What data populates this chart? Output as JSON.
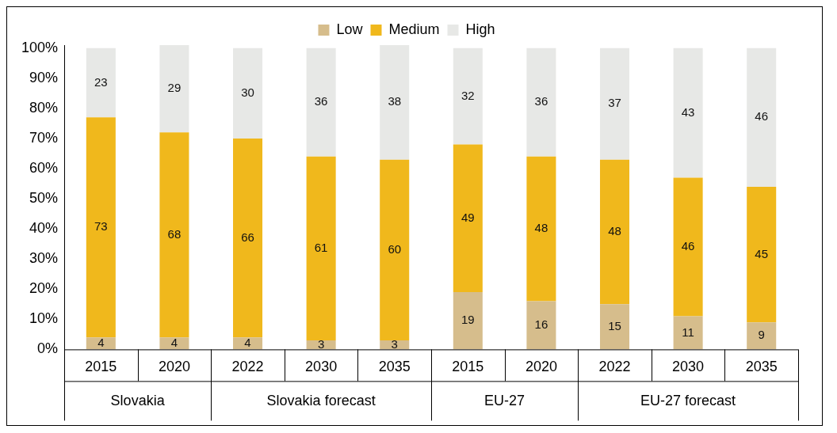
{
  "chart_data": {
    "type": "bar",
    "stacked": true,
    "categories": [
      "2015",
      "2020",
      "2022",
      "2030",
      "2035",
      "2015",
      "2020",
      "2022",
      "2030",
      "2035"
    ],
    "annotations": [
      "Slovakia",
      "Slovakia forecast",
      "EU-27",
      "EU-27 forecast"
    ],
    "series": [
      {
        "name": "Low",
        "color": "#d6bd8c",
        "values": [
          4,
          4,
          4,
          3,
          3,
          19,
          16,
          15,
          11,
          9
        ]
      },
      {
        "name": "Medium",
        "color": "#f0b81c",
        "values": [
          73,
          68,
          66,
          61,
          60,
          49,
          48,
          48,
          46,
          45
        ]
      },
      {
        "name": "High",
        "color": "#e7e8e6",
        "values": [
          23,
          29,
          30,
          36,
          38,
          32,
          36,
          37,
          43,
          46
        ]
      }
    ],
    "ylim": [
      0,
      101
    ],
    "yticks": [
      {
        "value": 0,
        "label": "0%"
      },
      {
        "value": 10,
        "label": "10%"
      },
      {
        "value": 20,
        "label": "20%"
      },
      {
        "value": 30,
        "label": "30%"
      },
      {
        "value": 40,
        "label": "40%"
      },
      {
        "value": 50,
        "label": "50%"
      },
      {
        "value": 60,
        "label": "60%"
      },
      {
        "value": 70,
        "label": "70%"
      },
      {
        "value": 80,
        "label": "80%"
      },
      {
        "value": 90,
        "label": "90%"
      },
      {
        "value": 100,
        "label": "100%"
      }
    ],
    "grid": false,
    "legend": "top",
    "data_labels": true
  }
}
